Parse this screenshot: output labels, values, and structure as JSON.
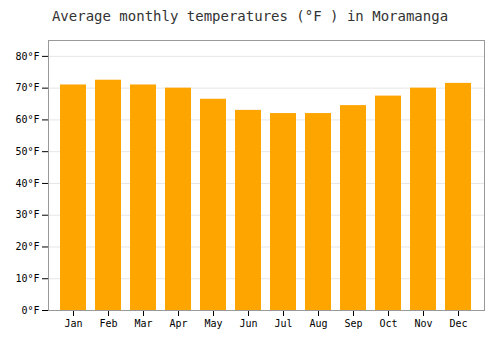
{
  "chart_data": {
    "type": "bar",
    "title": "Average monthly temperatures (°F ) in Moramanga",
    "categories": [
      "Jan",
      "Feb",
      "Mar",
      "Apr",
      "May",
      "Jun",
      "Jul",
      "Aug",
      "Sep",
      "Oct",
      "Nov",
      "Dec"
    ],
    "values": [
      71,
      72.5,
      71,
      70,
      66.5,
      63,
      62,
      62,
      64.5,
      67.5,
      70,
      71.5
    ],
    "color": "#FFA500",
    "ylim": [
      0,
      85
    ],
    "yticks": [
      {
        "value": 0,
        "label": "0°F"
      },
      {
        "value": 10,
        "label": "10°F"
      },
      {
        "value": 20,
        "label": "20°F"
      },
      {
        "value": 30,
        "label": "30°F"
      },
      {
        "value": 40,
        "label": "40°F"
      },
      {
        "value": 50,
        "label": "50°F"
      },
      {
        "value": 60,
        "label": "60°F"
      },
      {
        "value": 70,
        "label": "70°F"
      },
      {
        "value": 80,
        "label": "80°F"
      }
    ],
    "grid": true
  }
}
